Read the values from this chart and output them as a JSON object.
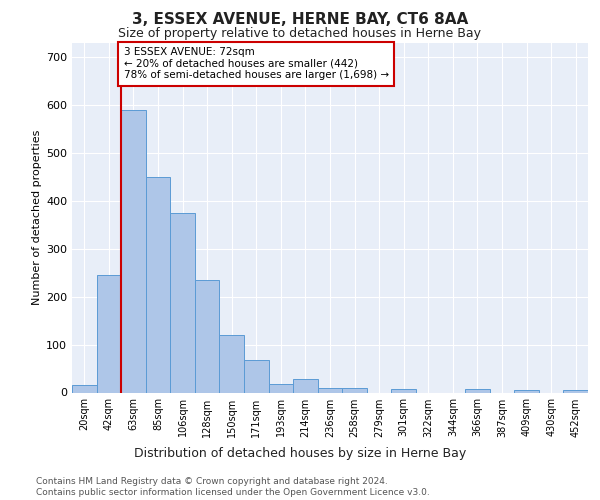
{
  "title": "3, ESSEX AVENUE, HERNE BAY, CT6 8AA",
  "subtitle": "Size of property relative to detached houses in Herne Bay",
  "xlabel": "Distribution of detached houses by size in Herne Bay",
  "ylabel": "Number of detached properties",
  "bar_labels": [
    "20sqm",
    "42sqm",
    "63sqm",
    "85sqm",
    "106sqm",
    "128sqm",
    "150sqm",
    "171sqm",
    "193sqm",
    "214sqm",
    "236sqm",
    "258sqm",
    "279sqm",
    "301sqm",
    "322sqm",
    "344sqm",
    "366sqm",
    "387sqm",
    "409sqm",
    "430sqm",
    "452sqm"
  ],
  "bar_values": [
    15,
    245,
    590,
    450,
    375,
    235,
    120,
    68,
    18,
    28,
    10,
    10,
    0,
    7,
    0,
    0,
    7,
    0,
    5,
    0,
    5
  ],
  "bar_color": "#aec6e8",
  "bar_edge_color": "#5b9bd5",
  "property_line_bin": 2,
  "annotation_line1": "3 ESSEX AVENUE: 72sqm",
  "annotation_line2": "← 20% of detached houses are smaller (442)",
  "annotation_line3": "78% of semi-detached houses are larger (1,698) →",
  "annotation_box_color": "#ffffff",
  "annotation_box_edge_color": "#cc0000",
  "property_line_color": "#cc0000",
  "ylim": [
    0,
    730
  ],
  "yticks": [
    0,
    100,
    200,
    300,
    400,
    500,
    600,
    700
  ],
  "plot_bg_color": "#e8eef8",
  "footer": "Contains HM Land Registry data © Crown copyright and database right 2024.\nContains public sector information licensed under the Open Government Licence v3.0.",
  "title_fontsize": 11,
  "subtitle_fontsize": 9,
  "xlabel_fontsize": 9,
  "ylabel_fontsize": 8,
  "footer_fontsize": 6.5
}
